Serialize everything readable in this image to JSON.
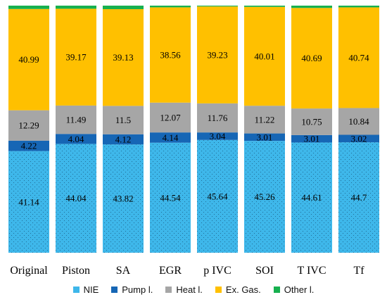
{
  "chart_data": {
    "type": "bar",
    "stacked": true,
    "normalized": true,
    "categories": [
      "Original",
      "Piston",
      "SA",
      "EGR",
      "p IVC",
      "SOI",
      "T IVC",
      "Tf"
    ],
    "series": [
      {
        "name": "NIE",
        "color": "#3EB7EA",
        "pattern": "dots",
        "values": [
          41.14,
          44.04,
          43.82,
          44.54,
          45.64,
          45.26,
          44.61,
          44.7
        ]
      },
      {
        "name": "Pump l.",
        "color": "#1666B5",
        "values": [
          4.22,
          4.04,
          4.12,
          4.14,
          3.04,
          3.01,
          3.01,
          3.02
        ]
      },
      {
        "name": "Heat l.",
        "color": "#A6A6A6",
        "values": [
          12.29,
          11.49,
          11.5,
          12.07,
          11.76,
          11.22,
          10.75,
          10.84
        ]
      },
      {
        "name": "Ex. Gas.",
        "color": "#FFC000",
        "values": [
          40.99,
          39.17,
          39.13,
          38.56,
          39.23,
          40.01,
          40.69,
          40.74
        ]
      },
      {
        "name": "Other l.",
        "color": "#17B04F",
        "values": [
          1.36,
          1.26,
          1.43,
          0.69,
          0.33,
          0.5,
          0.94,
          0.7
        ]
      }
    ],
    "data_labels": [
      [
        "41.14",
        "44.04",
        "43.82",
        "44.54",
        "45.64",
        "45.26",
        "44.61",
        "44.7"
      ],
      [
        "4.22",
        "4.04",
        "4.12",
        "4.14",
        "3.04",
        "3.01",
        "3.01",
        "3.02"
      ],
      [
        "12.29",
        "11.49",
        "11.5",
        "12.07",
        "11.76",
        "11.22",
        "10.75",
        "10.84"
      ],
      [
        "40.99",
        "39.17",
        "39.13",
        "38.56",
        "39.23",
        "40.01",
        "40.69",
        "40.74"
      ],
      [
        "",
        "",
        "",
        "",
        "",
        "",
        "",
        ""
      ]
    ],
    "title": "",
    "xlabel": "",
    "ylabel": "",
    "grid": false,
    "legend_position": "bottom"
  }
}
